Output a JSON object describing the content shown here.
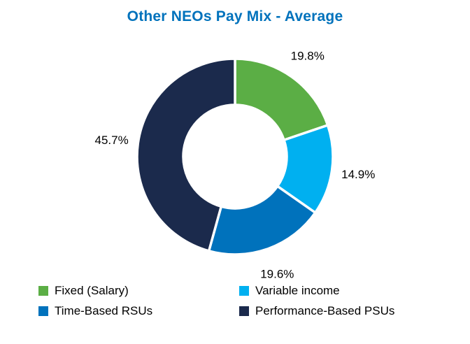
{
  "chart_data": {
    "type": "pie",
    "subtype": "donut",
    "title": "Other NEOs Pay Mix - Average",
    "title_color": "#0072BC",
    "legend_position": "bottom",
    "start_angle_deg": 0,
    "direction": "clockwise",
    "segments": [
      {
        "label": "Fixed (Salary)",
        "value": 19.8,
        "display": "19.8%",
        "color": "#5BAE45"
      },
      {
        "label": "Variable income",
        "value": 14.9,
        "display": "14.9%",
        "color": "#00B0F0"
      },
      {
        "label": "Time-Based RSUs",
        "value": 19.6,
        "display": "19.6%",
        "color": "#0072BC"
      },
      {
        "label": "Performance-Based PSUs",
        "value": 45.7,
        "display": "45.7%",
        "color": "#1B2A4C"
      }
    ]
  }
}
